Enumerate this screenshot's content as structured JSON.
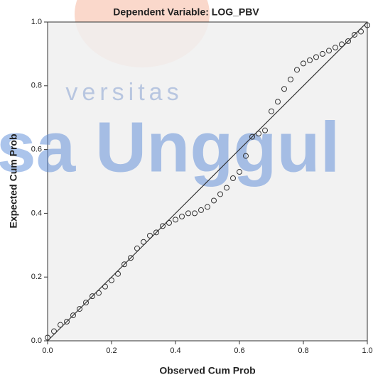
{
  "chart_data": {
    "type": "scatter",
    "title": "Dependent Variable: LOG_PBV",
    "x_label": "Observed Cum Prob",
    "y_label": "Expected Cum Prob",
    "watermark": [
      "versitas",
      "sa Unggul"
    ],
    "xlim": [
      0,
      1
    ],
    "ylim": [
      0,
      1
    ],
    "xticks": [
      {
        "value": 0,
        "label": "0.0"
      },
      {
        "value": 0.2,
        "label": "0.2"
      },
      {
        "value": 0.4,
        "label": "0.4"
      },
      {
        "value": 0.6,
        "label": "0.6"
      },
      {
        "value": 0.8,
        "label": "0.8"
      },
      {
        "value": 1,
        "label": "1.0"
      }
    ],
    "yticks": [
      {
        "value": 0,
        "label": "0.0"
      },
      {
        "value": 0.2,
        "label": "0.2"
      },
      {
        "value": 0.4,
        "label": "0.4"
      },
      {
        "value": 0.6,
        "label": "0.6"
      },
      {
        "value": 0.8,
        "label": "0.8"
      },
      {
        "value": 1,
        "label": "1.0"
      }
    ],
    "color": "#333333",
    "x": [
      0,
      0.02,
      0.04,
      0.06,
      0.08,
      0.1,
      0.12,
      0.14,
      0.16,
      0.18,
      0.2,
      0.22,
      0.24,
      0.26,
      0.28,
      0.3,
      0.32,
      0.34,
      0.36,
      0.38,
      0.4,
      0.42,
      0.44,
      0.46,
      0.48,
      0.5,
      0.52,
      0.54,
      0.56,
      0.58,
      0.6,
      0.62,
      0.64,
      0.66,
      0.68,
      0.7,
      0.72,
      0.74,
      0.76,
      0.78,
      0.8,
      0.82,
      0.84,
      0.86,
      0.88,
      0.9,
      0.92,
      0.94,
      0.96,
      0.98,
      1.0
    ],
    "values": [
      0.01,
      0.03,
      0.05,
      0.06,
      0.08,
      0.1,
      0.12,
      0.14,
      0.15,
      0.17,
      0.19,
      0.21,
      0.24,
      0.26,
      0.29,
      0.31,
      0.33,
      0.34,
      0.36,
      0.37,
      0.38,
      0.39,
      0.4,
      0.4,
      0.41,
      0.42,
      0.44,
      0.46,
      0.48,
      0.51,
      0.53,
      0.58,
      0.64,
      0.65,
      0.66,
      0.72,
      0.75,
      0.79,
      0.82,
      0.85,
      0.87,
      0.88,
      0.89,
      0.9,
      0.91,
      0.92,
      0.93,
      0.94,
      0.96,
      0.97,
      0.99
    ]
  }
}
